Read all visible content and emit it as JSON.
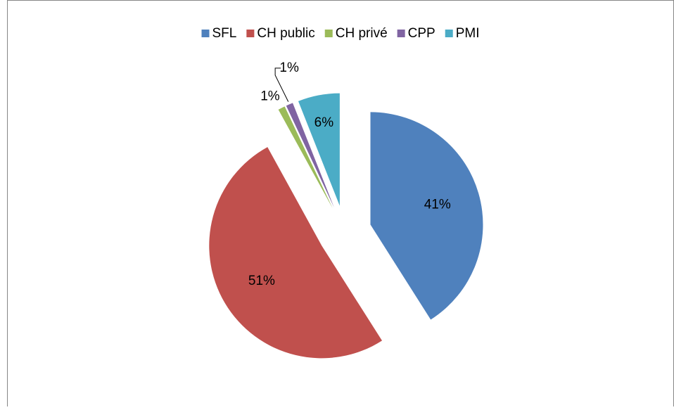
{
  "chart_data": {
    "type": "pie",
    "categories": [
      "SFL",
      "CH public",
      "CH privé",
      "CPP",
      "PMI"
    ],
    "values": [
      41,
      51,
      1,
      1,
      6
    ],
    "value_labels": [
      "41%",
      "51%",
      "1%",
      "1%",
      "6%"
    ],
    "colors": [
      "#4f81bd",
      "#c0504d",
      "#9bbb59",
      "#8064a2",
      "#4bacc6"
    ],
    "legend": "top"
  }
}
